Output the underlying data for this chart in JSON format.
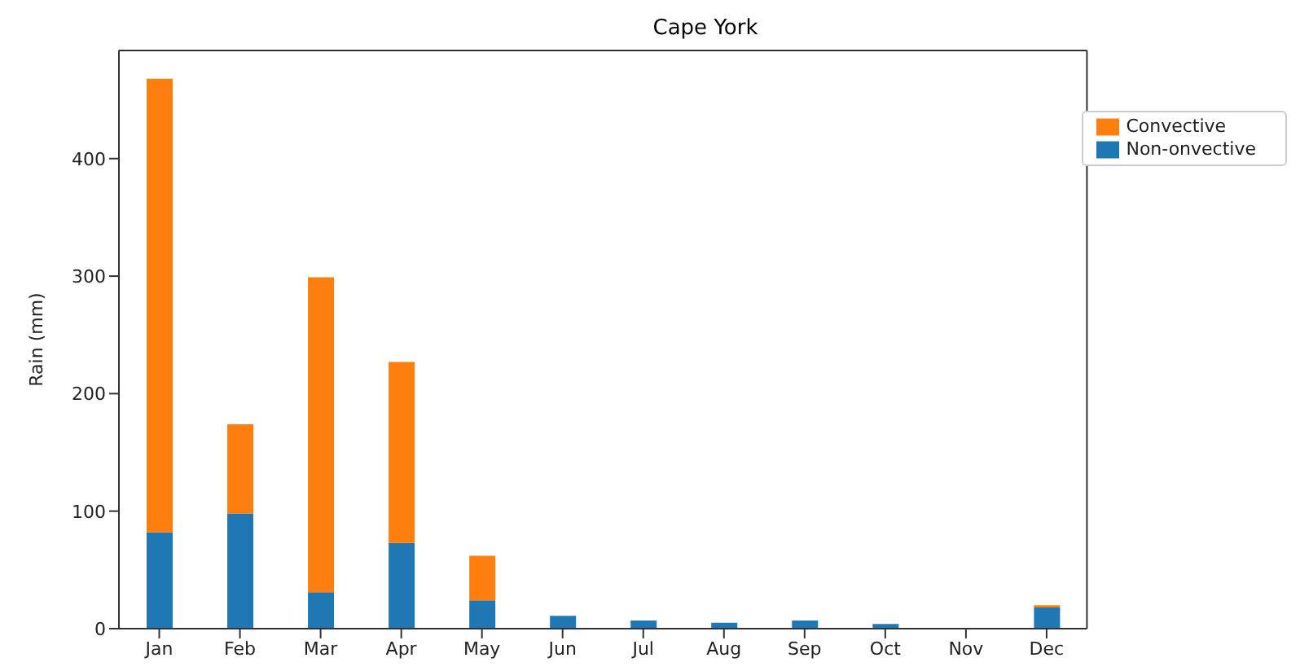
{
  "chart_data": {
    "type": "bar",
    "title": "Cape York",
    "ylabel": "Rain (mm)",
    "categories": [
      "Jan",
      "Feb",
      "Mar",
      "Apr",
      "May",
      "Jun",
      "Jul",
      "Aug",
      "Sep",
      "Oct",
      "Nov",
      "Dec"
    ],
    "series": [
      {
        "name": "Non-onvective",
        "color": "#1f77b4",
        "values": [
          82,
          98,
          31,
          73,
          24,
          11,
          7,
          5,
          7,
          4,
          0,
          18
        ]
      },
      {
        "name": "Convective",
        "color": "#ff7f0e",
        "values": [
          386,
          76,
          268,
          154,
          38,
          0,
          0,
          0,
          0,
          0,
          0,
          2
        ]
      }
    ],
    "stacked": true,
    "ylim": [
      0,
      492
    ],
    "yticks": [
      0,
      100,
      200,
      300,
      400
    ],
    "legend": "top right",
    "grid": false
  }
}
